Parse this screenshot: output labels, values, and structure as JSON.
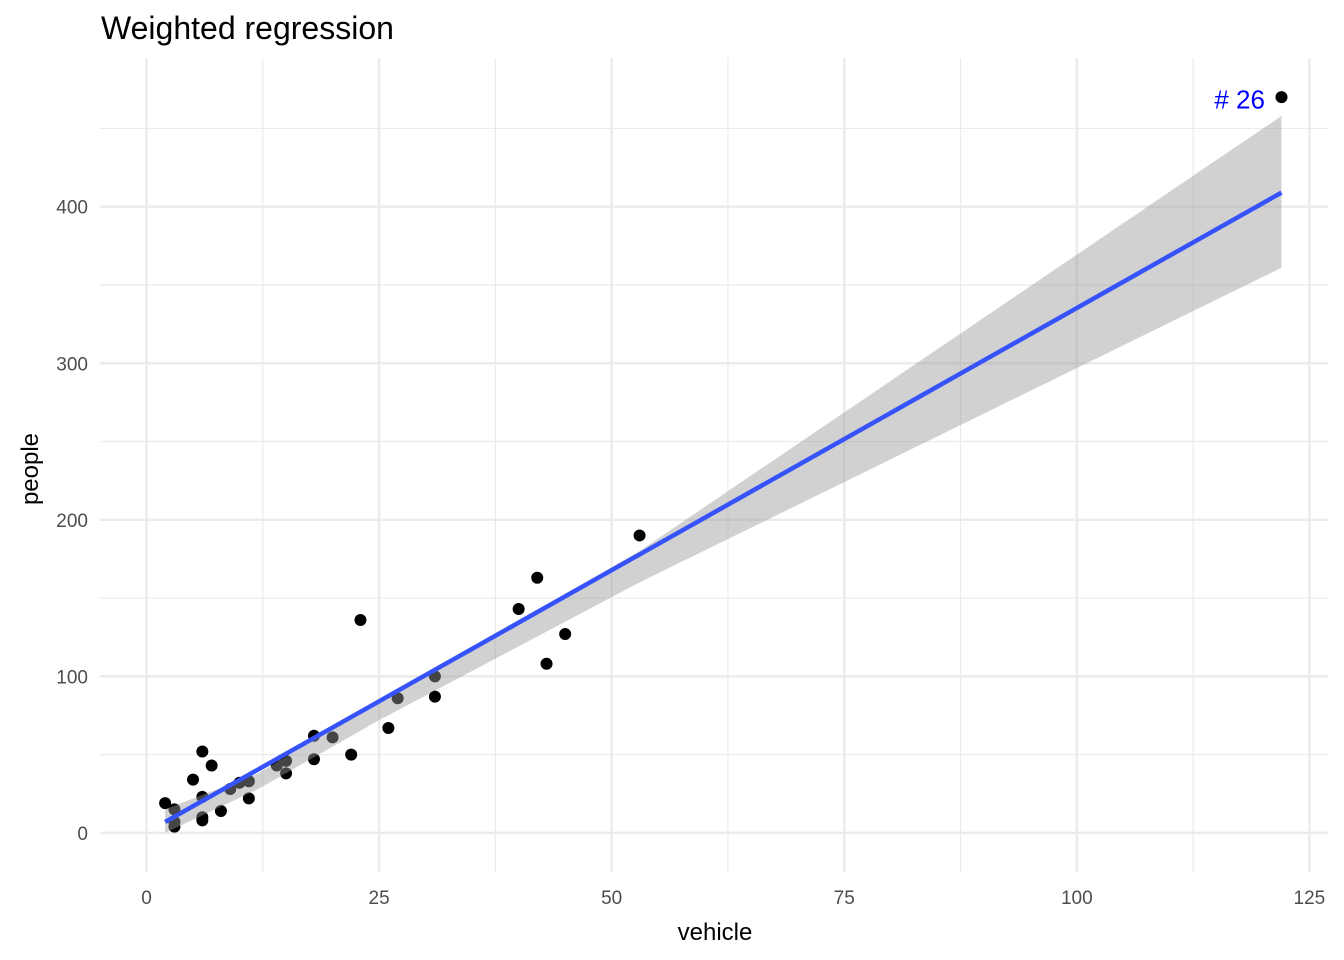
{
  "chart_data": {
    "type": "scatter",
    "title": "Weighted regression",
    "xlabel": "vehicle",
    "ylabel": "people",
    "xlim": [
      -5,
      127
    ],
    "ylim": [
      -25,
      495
    ],
    "x_ticks": [
      0,
      25,
      50,
      75,
      100,
      125
    ],
    "y_ticks": [
      0,
      100,
      200,
      300,
      400
    ],
    "grid": true,
    "colors": {
      "points": "#000000",
      "fit_line": "#3652fa",
      "confidence_band": "#999999",
      "annotation": "#0000ff",
      "grid": "#ebebeb"
    },
    "points": [
      {
        "x": 2,
        "y": 19
      },
      {
        "x": 3,
        "y": 15
      },
      {
        "x": 3,
        "y": 7
      },
      {
        "x": 3,
        "y": 4
      },
      {
        "x": 5,
        "y": 34
      },
      {
        "x": 6,
        "y": 52
      },
      {
        "x": 6,
        "y": 23
      },
      {
        "x": 6,
        "y": 10
      },
      {
        "x": 6,
        "y": 8
      },
      {
        "x": 7,
        "y": 43
      },
      {
        "x": 8,
        "y": 14
      },
      {
        "x": 9,
        "y": 28
      },
      {
        "x": 10,
        "y": 32
      },
      {
        "x": 11,
        "y": 33
      },
      {
        "x": 11,
        "y": 22
      },
      {
        "x": 14,
        "y": 43
      },
      {
        "x": 15,
        "y": 46
      },
      {
        "x": 15,
        "y": 38
      },
      {
        "x": 18,
        "y": 62
      },
      {
        "x": 18,
        "y": 47
      },
      {
        "x": 20,
        "y": 61
      },
      {
        "x": 22,
        "y": 50
      },
      {
        "x": 23,
        "y": 136
      },
      {
        "x": 26,
        "y": 67
      },
      {
        "x": 27,
        "y": 86
      },
      {
        "x": 31,
        "y": 100
      },
      {
        "x": 31,
        "y": 87
      },
      {
        "x": 40,
        "y": 143
      },
      {
        "x": 42,
        "y": 163
      },
      {
        "x": 43,
        "y": 108
      },
      {
        "x": 45,
        "y": 127
      },
      {
        "x": 53,
        "y": 190
      },
      {
        "x": 122,
        "y": 470
      }
    ],
    "fit_line": {
      "x": [
        2,
        122
      ],
      "y": [
        7,
        409
      ]
    },
    "confidence_band": {
      "x": [
        2,
        12,
        25,
        53,
        122
      ],
      "lower": [
        0,
        28,
        72,
        160,
        361
      ],
      "upper": [
        15,
        38,
        84,
        180,
        458
      ]
    },
    "annotation": {
      "text": "# 26",
      "x": 117,
      "y": 473
    }
  }
}
